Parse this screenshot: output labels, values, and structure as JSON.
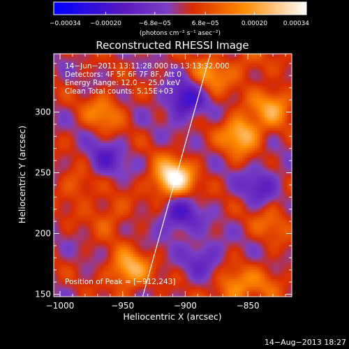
{
  "chart_data": {
    "type": "heatmap",
    "title": "Reconstructed RHESSI Image",
    "xlabel": "Heliocentric X (arcsec)",
    "ylabel": "Heliocentric Y (arcsec)",
    "xlim": [
      -1005,
      -815
    ],
    "ylim": [
      148,
      348
    ],
    "x_ticks": [
      -1000,
      -950,
      -900,
      -850
    ],
    "x_tick_labels": [
      "−1000",
      "−950",
      "−900",
      "−850"
    ],
    "y_ticks": [
      150,
      200,
      250,
      300
    ],
    "y_tick_labels": [
      "150",
      "200",
      "250",
      "300"
    ],
    "colorbar": {
      "range": [
        -0.00034,
        0.00034
      ],
      "tick_values": [
        -0.00034,
        -0.0002,
        -6.8e-05,
        6.8e-05,
        0.0002,
        0.00034
      ],
      "tick_labels": [
        "−0.00034",
        "−0.00020",
        "−6.8e−05",
        "6.8e−05",
        "0.00020",
        "0.00034"
      ],
      "units": "(photons cm⁻² s⁻¹ asec⁻²)",
      "colors": [
        "#0000ff",
        "#5a1abe",
        "#7a3fc4",
        "#d92c00",
        "#ff8c00",
        "#ffffff"
      ]
    },
    "info_lines": [
      "14−Jun−2011 13:11:28.000 to 13:13:32.000",
      "Detectors: 4F 5F 6F 7F 8F, Att 0",
      "Energy Range: 12.0 − 25.0 keV",
      "Clean     Total counts: 5.15E+03"
    ],
    "peak_label": "Position of Peak = [−912,243]",
    "peak": {
      "x": -912,
      "y": 243
    },
    "limb_line": [
      [
        -934,
        148
      ],
      [
        -880,
        348
      ]
    ],
    "sources": [
      {
        "x": -910,
        "y": 245,
        "value": 0.00034
      },
      {
        "x": -855,
        "y": 282,
        "value": 0.00024
      },
      {
        "x": -830,
        "y": 305,
        "value": 0.00018
      },
      {
        "x": -945,
        "y": 170,
        "value": 0.00022
      },
      {
        "x": -862,
        "y": 155,
        "value": 0.00016
      },
      {
        "x": -965,
        "y": 300,
        "value": 0.00014
      },
      {
        "x": -880,
        "y": 330,
        "value": 0.00015
      },
      {
        "x": -985,
        "y": 240,
        "value": 0.0001
      },
      {
        "x": -830,
        "y": 210,
        "value": 0.0001
      },
      {
        "x": -960,
        "y": 215,
        "value": 9e-05
      },
      {
        "x": -835,
        "y": 160,
        "value": 8e-05
      },
      {
        "x": -850,
        "y": 340,
        "value": 8e-05
      },
      {
        "x": -900,
        "y": 310,
        "value": -0.00022
      },
      {
        "x": -905,
        "y": 215,
        "value": -0.00018
      },
      {
        "x": -965,
        "y": 260,
        "value": -0.00014
      },
      {
        "x": -840,
        "y": 240,
        "value": -0.00014
      },
      {
        "x": -885,
        "y": 180,
        "value": -0.00012
      }
    ]
  },
  "footer": {
    "date": "14−Aug−2013 18:27"
  }
}
